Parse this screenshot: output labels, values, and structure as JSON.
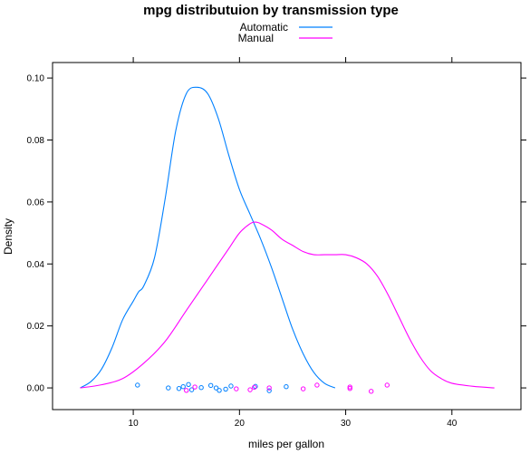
{
  "chart_data": {
    "type": "line",
    "title": "mpg distributuion by transmission type",
    "xlabel": "miles per gallon",
    "ylabel": "Density",
    "xlim": [
      2.4,
      46.5
    ],
    "ylim": [
      -0.007,
      0.105
    ],
    "xticks": [
      10,
      20,
      30,
      40
    ],
    "yticks": [
      0.0,
      0.02,
      0.04,
      0.06,
      0.08,
      0.1
    ],
    "ytick_labels": [
      "0.00",
      "0.02",
      "0.04",
      "0.06",
      "0.08",
      "0.10"
    ],
    "grid": false,
    "legend_position": "top",
    "series": [
      {
        "name": "Automatic",
        "color": "#0080ff",
        "x": [
          5.0,
          6.0,
          7.0,
          8.0,
          9.0,
          10.0,
          10.5,
          11.0,
          12.0,
          13.0,
          14.0,
          15.0,
          16.0,
          17.0,
          18.0,
          19.0,
          20.0,
          21.0,
          22.0,
          23.0,
          24.0,
          25.0,
          26.0,
          27.0,
          28.0,
          29.0
        ],
        "y": [
          0.0,
          0.002,
          0.006,
          0.013,
          0.022,
          0.028,
          0.031,
          0.033,
          0.042,
          0.061,
          0.083,
          0.095,
          0.097,
          0.095,
          0.087,
          0.075,
          0.064,
          0.056,
          0.048,
          0.039,
          0.029,
          0.019,
          0.011,
          0.005,
          0.0015,
          0.0
        ]
      },
      {
        "name": "Manual",
        "color": "#ff00ff",
        "x": [
          5.0,
          7.0,
          9.0,
          11.0,
          13.0,
          15.0,
          17.0,
          19.0,
          20.0,
          21.0,
          21.5,
          22.0,
          23.0,
          24.0,
          25.0,
          26.0,
          27.0,
          28.0,
          29.0,
          30.0,
          31.0,
          32.0,
          33.0,
          34.0,
          35.0,
          36.0,
          37.0,
          38.0,
          39.0,
          40.0,
          42.0,
          44.0
        ],
        "y": [
          0.0,
          0.001,
          0.003,
          0.008,
          0.015,
          0.025,
          0.035,
          0.045,
          0.05,
          0.053,
          0.0535,
          0.053,
          0.051,
          0.048,
          0.046,
          0.044,
          0.043,
          0.043,
          0.043,
          0.043,
          0.042,
          0.04,
          0.036,
          0.03,
          0.023,
          0.016,
          0.01,
          0.0055,
          0.003,
          0.0015,
          0.0005,
          0.0
        ]
      }
    ],
    "rug_points": [
      {
        "series": "Automatic",
        "x": 10.4,
        "y": 0.0009
      },
      {
        "series": "Automatic",
        "x": 13.3,
        "y": 0.0
      },
      {
        "series": "Automatic",
        "x": 14.3,
        "y": -0.0002
      },
      {
        "series": "Automatic",
        "x": 14.7,
        "y": 0.0004
      },
      {
        "series": "Automatic",
        "x": 15.2,
        "y": 0.0011
      },
      {
        "series": "Automatic",
        "x": 15.5,
        "y": -0.0006
      },
      {
        "series": "Automatic",
        "x": 16.4,
        "y": 0.0001
      },
      {
        "series": "Automatic",
        "x": 17.3,
        "y": 0.0008
      },
      {
        "series": "Automatic",
        "x": 17.8,
        "y": 0.0
      },
      {
        "series": "Automatic",
        "x": 18.1,
        "y": -0.0008
      },
      {
        "series": "Automatic",
        "x": 18.7,
        "y": -0.0004
      },
      {
        "series": "Automatic",
        "x": 19.2,
        "y": 0.0006
      },
      {
        "series": "Automatic",
        "x": 21.5,
        "y": 0.0005
      },
      {
        "series": "Automatic",
        "x": 22.8,
        "y": -0.0009
      },
      {
        "series": "Automatic",
        "x": 24.4,
        "y": 0.0004
      },
      {
        "series": "Manual",
        "x": 15.0,
        "y": -0.0008
      },
      {
        "series": "Manual",
        "x": 15.8,
        "y": 0.0003
      },
      {
        "series": "Manual",
        "x": 19.7,
        "y": -0.0003
      },
      {
        "series": "Manual",
        "x": 21.0,
        "y": -0.0006
      },
      {
        "series": "Manual",
        "x": 21.4,
        "y": 0.0002
      },
      {
        "series": "Manual",
        "x": 22.8,
        "y": 0.0
      },
      {
        "series": "Manual",
        "x": 26.0,
        "y": -0.0003
      },
      {
        "series": "Manual",
        "x": 27.3,
        "y": 0.0009
      },
      {
        "series": "Manual",
        "x": 30.4,
        "y": -0.0002
      },
      {
        "series": "Manual",
        "x": 30.4,
        "y": 0.0003
      },
      {
        "series": "Manual",
        "x": 32.4,
        "y": -0.0011
      },
      {
        "series": "Manual",
        "x": 33.9,
        "y": 0.0009
      }
    ]
  }
}
